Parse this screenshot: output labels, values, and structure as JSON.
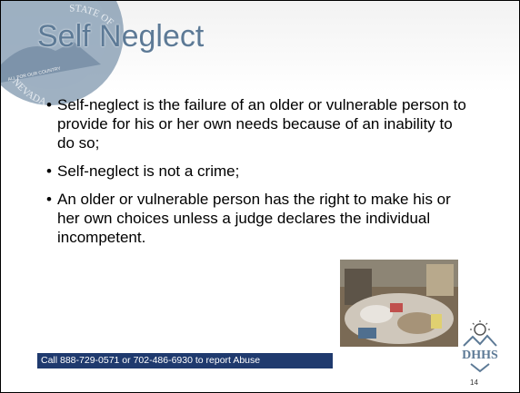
{
  "header": {
    "title": "Self Neglect",
    "seal": {
      "top_text": "STATE OF",
      "bottom_text": "NEVADA",
      "motto": "ALL FOR OUR COUNTRY"
    }
  },
  "bullets": [
    "Self-neglect is the failure of an older or vulnerable person to provide for his or her own needs because of an inability to do so;",
    "Self-neglect is not a crime;",
    "An older or vulnerable person has the right to make his or her own choices unless a judge declares the individual incompetent."
  ],
  "footer": {
    "text": "Call 888-729-0571 or 702-486-6930 to report Abuse",
    "page_number": "14",
    "logo_text": "DHHS"
  }
}
